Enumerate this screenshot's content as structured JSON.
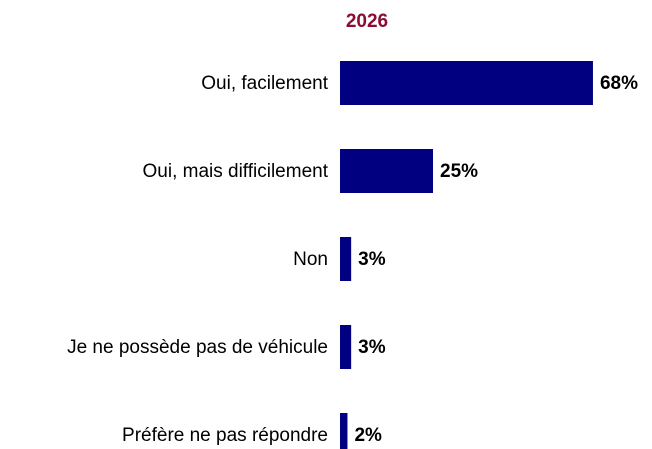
{
  "chart_data": {
    "type": "bar",
    "orientation": "horizontal",
    "title": "2026",
    "categories": [
      "Oui, facilement",
      "Oui, mais difficilement",
      "Non",
      "Je ne possède pas de véhicule",
      "Préfère ne pas répondre"
    ],
    "values": [
      68,
      25,
      3,
      3,
      2
    ],
    "value_labels": [
      "68%",
      "25%",
      "3%",
      "3%",
      "2%"
    ],
    "color": "#000080"
  }
}
